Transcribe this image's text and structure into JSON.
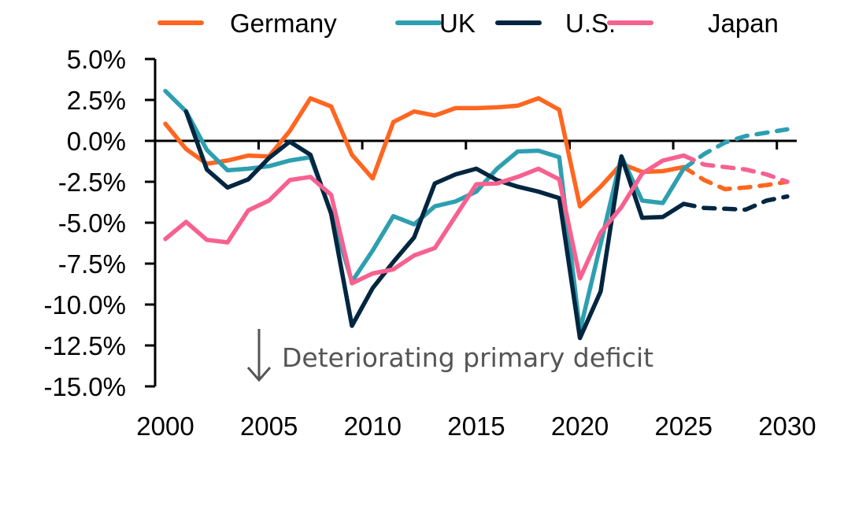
{
  "chart_data": {
    "type": "line",
    "title": "",
    "xlabel": "",
    "ylabel": "",
    "x": [
      2000,
      2001,
      2002,
      2003,
      2004,
      2005,
      2006,
      2007,
      2008,
      2009,
      2010,
      2011,
      2012,
      2013,
      2014,
      2015,
      2016,
      2017,
      2018,
      2019,
      2020,
      2021,
      2022,
      2023,
      2024,
      2025,
      2026,
      2027,
      2028,
      2029,
      2030
    ],
    "x_tick_labels": [
      "2000",
      "2005",
      "2010",
      "2015",
      "2020",
      "2025",
      "2030"
    ],
    "x_tick_values": [
      2000,
      2005,
      2010,
      2015,
      2020,
      2025,
      2030
    ],
    "ylim": [
      -15,
      5
    ],
    "y_ticks": [
      5,
      2.5,
      0,
      -2.5,
      -5,
      -7.5,
      -10,
      -12.5,
      -15
    ],
    "y_tick_labels": [
      "5.0%",
      "2.5%",
      "0.0%",
      "-2.5%",
      "-5.0%",
      "-7.5%",
      "-10.0%",
      "-12.5%",
      "-15.0%"
    ],
    "grid": false,
    "legend_position": "top",
    "forecast_start": 2025,
    "forecast_style": "dashed",
    "series": [
      {
        "name": "Germany",
        "color": "#FF6620",
        "values": [
          1.05,
          -0.5,
          -1.4,
          -1.2,
          -0.9,
          -0.95,
          0.6,
          2.6,
          2.1,
          -0.85,
          -2.3,
          1.15,
          1.8,
          1.55,
          2.0,
          2.0,
          2.05,
          2.15,
          2.6,
          1.9,
          -4.0,
          -2.8,
          -1.4,
          -1.9,
          -1.85,
          -1.6,
          -2.4,
          -2.95,
          -2.85,
          -2.7,
          -2.5
        ]
      },
      {
        "name": "UK",
        "color": "#2E9FB0",
        "values": [
          3.05,
          1.8,
          -0.55,
          -1.8,
          -1.7,
          -1.55,
          -1.2,
          -1.0,
          -4.4,
          -8.6,
          -6.7,
          -4.6,
          -5.1,
          -4.0,
          -3.7,
          -3.1,
          -1.7,
          -0.65,
          -0.6,
          -1.0,
          -11.6,
          -6.3,
          -0.95,
          -3.65,
          -3.8,
          -1.7,
          -0.8,
          -0.1,
          0.3,
          0.5,
          0.7
        ]
      },
      {
        "name": "U.S.",
        "color": "#022640",
        "values": [
          null,
          1.8,
          -1.75,
          -2.85,
          -2.35,
          -1.05,
          -0.05,
          -0.85,
          -4.45,
          -11.3,
          -9.0,
          -7.4,
          -5.9,
          -2.6,
          -2.05,
          -1.7,
          -2.4,
          -2.8,
          -3.1,
          -3.5,
          -12.05,
          -9.2,
          -0.95,
          -4.7,
          -4.65,
          -3.85,
          -4.1,
          -4.15,
          -4.2,
          -3.65,
          -3.4
        ]
      },
      {
        "name": "Japan",
        "color": "#F7618F",
        "values": [
          -6.0,
          -4.95,
          -6.05,
          -6.2,
          -4.25,
          -3.65,
          -2.4,
          -2.2,
          -3.3,
          -8.7,
          -8.1,
          -7.85,
          -7.0,
          -6.55,
          -4.6,
          -2.65,
          -2.6,
          -2.2,
          -1.7,
          -2.35,
          -8.4,
          -5.6,
          -4.05,
          -2.0,
          -1.2,
          -0.9,
          -1.45,
          -1.6,
          -1.75,
          -2.05,
          -2.5
        ]
      }
    ],
    "annotation": {
      "text": "Deteriorating primary deficit",
      "icon": "down-arrow-icon",
      "color": "#555555"
    }
  }
}
